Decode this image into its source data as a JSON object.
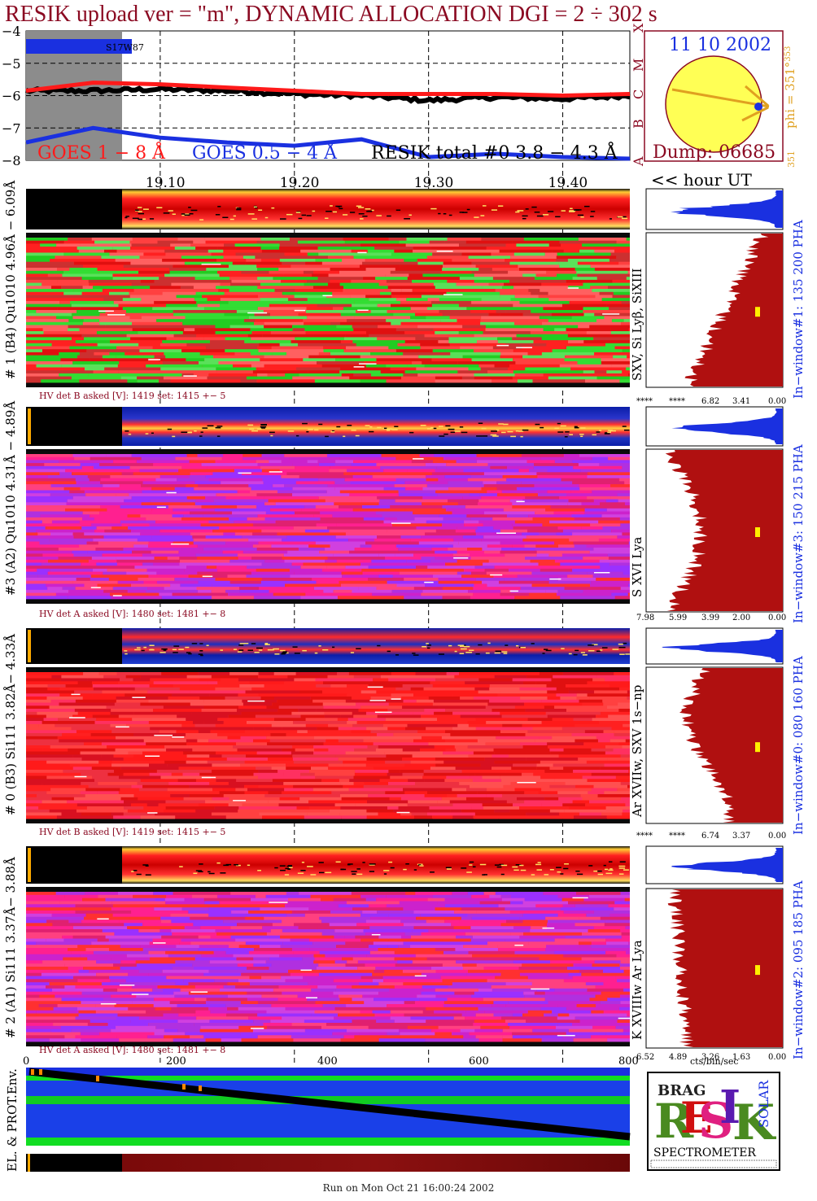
{
  "header": {
    "title": "RESIK upload ver = \"m\", DYNAMIC ALLOCATION  DGI =   2 ÷ 302 s"
  },
  "goes": {
    "y_ticks": [
      "−4",
      "−5",
      "−6",
      "−7",
      "−8"
    ],
    "x_ticks": [
      "19.10",
      "19.20",
      "19.30",
      "19.40"
    ],
    "x_unit_label": "<< hour UT",
    "legend": {
      "long": "GOES 1 − 8 Å",
      "short": "GOES 0.5 − 4 Å",
      "resik": "RESIK total #0  3.8 − 4.3 Å"
    },
    "marker": "S17W87",
    "class_letters": [
      "X",
      "M",
      "C",
      "B",
      "A"
    ],
    "colors": {
      "long": "#ff1a1a",
      "short": "#1a30e0",
      "resik": "#000000",
      "shade": "#8c8c8c"
    }
  },
  "sun": {
    "date": "11 10 2002",
    "phi": "phi = 351°",
    "phi_sup": "353",
    "phi_bottom": "351",
    "dump": "Dump: 06685",
    "disc_color": "#ffff55"
  },
  "channels": [
    {
      "id": "ch1",
      "label": "# 1 (B4) Qu1010 4.96Å − 6.09Å",
      "lines": "SXV, Si Lyβ, SiXIII",
      "window": "In−window#1:  135 200 PHA",
      "hv": "HV det B asked [V]:  1419 set:  1415 +−    5",
      "ticks": [
        "****",
        "****",
        "6.82",
        "3.41",
        "0.00"
      ]
    },
    {
      "id": "ch3",
      "label": "#3 (A2) Qu1010  4.31Å − 4.89Å",
      "lines": "S XVI Lya",
      "window": "In−window#3:  150 215 PHA",
      "hv": "HV det A asked [V]:  1480 set:  1481 +−    8",
      "ticks": [
        "7.98",
        "5.99",
        "3.99",
        "2.00",
        "0.00"
      ]
    },
    {
      "id": "ch0",
      "label": "# 0 (B3) Si111  3.82Å− 4.33Å",
      "lines": "Ar XVIIw,  SXV 1s−np",
      "window": "In−window#0:  080 160 PHA",
      "hv": "HV det B asked [V]:  1419 set:  1415 +−    5",
      "ticks": [
        "****",
        "****",
        "6.74",
        "3.37",
        "0.00"
      ]
    },
    {
      "id": "ch2",
      "label": "# 2 (A1) Si111  3.37Å− 3.88Å",
      "lines": "K XVIIIw  Ar Lya",
      "window": "In−window#2:  095 185 PHA",
      "hv": "HV det A asked [V]:  1480 set:  1481 +−    8",
      "ticks": [
        "6.52",
        "4.89",
        "3.26",
        "1.63",
        "0.00"
      ]
    }
  ],
  "bottom": {
    "x_ticks": [
      "0",
      "200",
      "400",
      "600",
      "800"
    ],
    "units": "cts/bin/sec",
    "env_label": "EL. & PROT.Env."
  },
  "logo": {
    "letters": "RESIK",
    "small": "BRAG",
    "sol": "SOLAR",
    "spectrometer": "SPECTROMETER"
  },
  "footer": "Run on Mon Oct 21 16:00:24 2002",
  "chart_data": [
    {
      "type": "line",
      "title": "",
      "x": [
        19.0,
        19.05,
        19.1,
        19.15,
        19.2,
        19.25,
        19.3,
        19.35,
        19.4,
        19.45
      ],
      "series": [
        {
          "name": "GOES 1 − 8 Å",
          "values": [
            -5.85,
            -5.6,
            -5.65,
            -5.75,
            -5.85,
            -5.95,
            -5.95,
            -5.95,
            -6.0,
            -5.95
          ]
        },
        {
          "name": "GOES 0.5 − 4 Å",
          "values": [
            -7.45,
            -7.0,
            -7.3,
            -7.45,
            -7.55,
            -7.35,
            -7.9,
            -7.8,
            -7.9,
            -7.95
          ]
        },
        {
          "name": "RESIK total #0  3.8 − 4.3 Å",
          "values": [
            -5.85,
            -5.85,
            -5.8,
            -5.85,
            -5.95,
            -6.0,
            -6.15,
            -6.05,
            -6.1,
            -6.0
          ]
        }
      ],
      "ylim": [
        -8,
        -4
      ],
      "xlim": [
        19.0,
        19.45
      ]
    }
  ]
}
